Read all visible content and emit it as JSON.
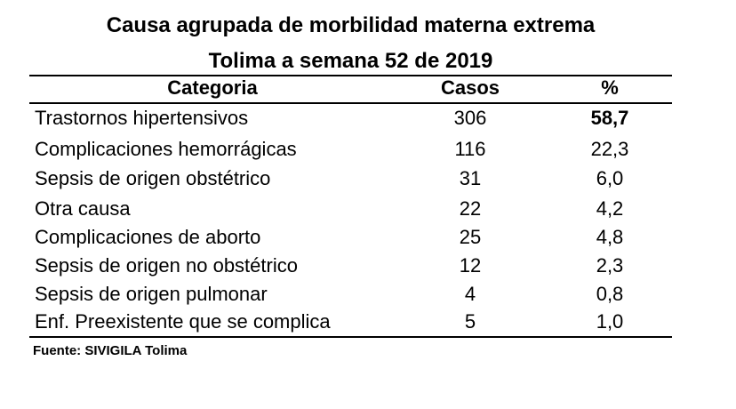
{
  "title": {
    "line1": "Causa agrupada de morbilidad materna extrema",
    "line2": "Tolima a semana 52 de 2019"
  },
  "table": {
    "headers": {
      "category": "Categoria",
      "cases": "Casos",
      "percent": "%"
    },
    "rows": [
      {
        "category": "Trastornos hipertensivos",
        "cases": "306",
        "percent": "58,7",
        "highlight": true
      },
      {
        "category": "Complicaciones hemorrágicas",
        "cases": "116",
        "percent": "22,3"
      },
      {
        "category": "Sepsis de origen obstétrico",
        "cases": "31",
        "percent": "6,0"
      },
      {
        "category": "Otra causa",
        "cases": "22",
        "percent": "4,2"
      },
      {
        "category": "Complicaciones de aborto",
        "cases": "25",
        "percent": "4,8"
      },
      {
        "category": "Sepsis de origen no obstétrico",
        "cases": "12",
        "percent": "2,3"
      },
      {
        "category": "Sepsis de origen pulmonar",
        "cases": "4",
        "percent": "0,8"
      },
      {
        "category": "Enf. Preexistente que se complica",
        "cases": "5",
        "percent": "1,0"
      }
    ]
  },
  "source": "Fuente: SIVIGILA Tolima"
}
